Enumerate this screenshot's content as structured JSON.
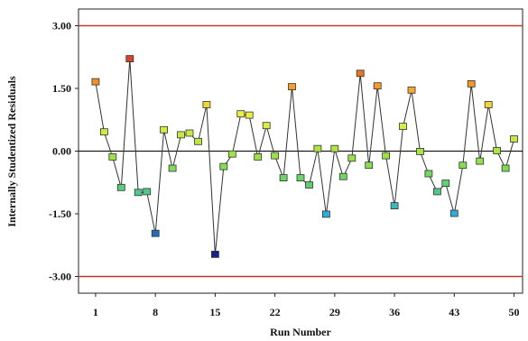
{
  "chart_data": {
    "type": "scatter",
    "title": "",
    "xlabel": "Run Number",
    "ylabel": "Internally Studentized Residuals",
    "x_ticks": [
      "1",
      "8",
      "15",
      "22",
      "29",
      "36",
      "43",
      "50"
    ],
    "y_ticks": [
      "3.00",
      "1.50",
      "0.00",
      "-1.50",
      "-3.00"
    ],
    "xlim": [
      -1,
      51
    ],
    "ylim": [
      -3.4,
      3.4
    ],
    "limit_lines": [
      3.0,
      -3.0
    ],
    "limit_line_color": "#c0392b",
    "zero_line_color": "#000000",
    "series": [
      {
        "x": [
          1,
          2,
          3,
          4,
          5,
          6,
          7,
          8,
          9,
          10,
          11,
          12,
          13,
          14,
          15,
          16,
          17,
          18,
          19,
          20,
          21,
          22,
          23,
          24,
          25,
          26,
          27,
          28,
          29,
          30,
          31,
          32,
          33,
          34,
          35,
          36,
          37,
          38,
          39,
          40,
          41,
          42,
          43,
          44,
          45,
          46,
          47,
          48,
          49,
          50
        ],
        "values": [
          1.65,
          0.45,
          -0.15,
          -0.88,
          2.2,
          -1.0,
          -0.98,
          -1.98,
          0.5,
          -0.42,
          0.38,
          0.42,
          0.22,
          1.1,
          -2.48,
          -0.38,
          -0.08,
          0.88,
          0.85,
          -0.15,
          0.6,
          -0.12,
          -0.65,
          1.53,
          -0.65,
          -0.82,
          0.05,
          -1.52,
          0.05,
          -0.62,
          -0.18,
          1.85,
          -0.35,
          1.55,
          -0.12,
          -1.32,
          0.58,
          1.45,
          -0.02,
          -0.55,
          -0.98,
          -0.78,
          -1.5,
          -0.35,
          1.6,
          -0.25,
          1.1,
          0.0,
          -0.42,
          0.28
        ]
      }
    ]
  }
}
